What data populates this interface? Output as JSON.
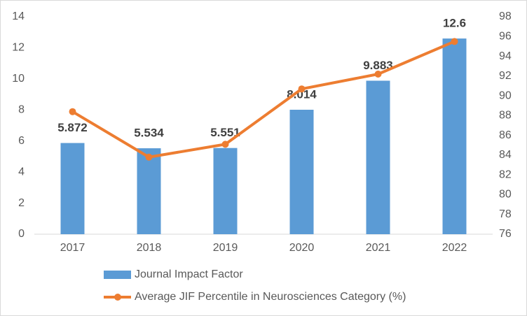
{
  "chart_data": {
    "type": "combo",
    "categories": [
      "2017",
      "2018",
      "2019",
      "2020",
      "2021",
      "2022"
    ],
    "series": [
      {
        "name": "Journal Impact Factor",
        "type": "bar",
        "color": "#5b9bd5",
        "values": [
          5.872,
          5.534,
          5.551,
          8.014,
          9.883,
          12.6
        ],
        "data_labels": true
      },
      {
        "name": "Average JIF Percentile in Neurosciences Category (%)",
        "type": "line",
        "axis": "y2",
        "color": "#ed7d31",
        "values": [
          88.4,
          83.8,
          85.1,
          90.7,
          92.2,
          95.5
        ]
      }
    ],
    "ylim": [
      0,
      14
    ],
    "yticks": [
      0,
      2,
      4,
      6,
      8,
      10,
      12,
      14
    ],
    "y2lim": [
      76,
      98
    ],
    "y2ticks": [
      76,
      78,
      80,
      82,
      84,
      86,
      88,
      90,
      92,
      94,
      96,
      98
    ],
    "grid": false,
    "legend": "bottom"
  }
}
